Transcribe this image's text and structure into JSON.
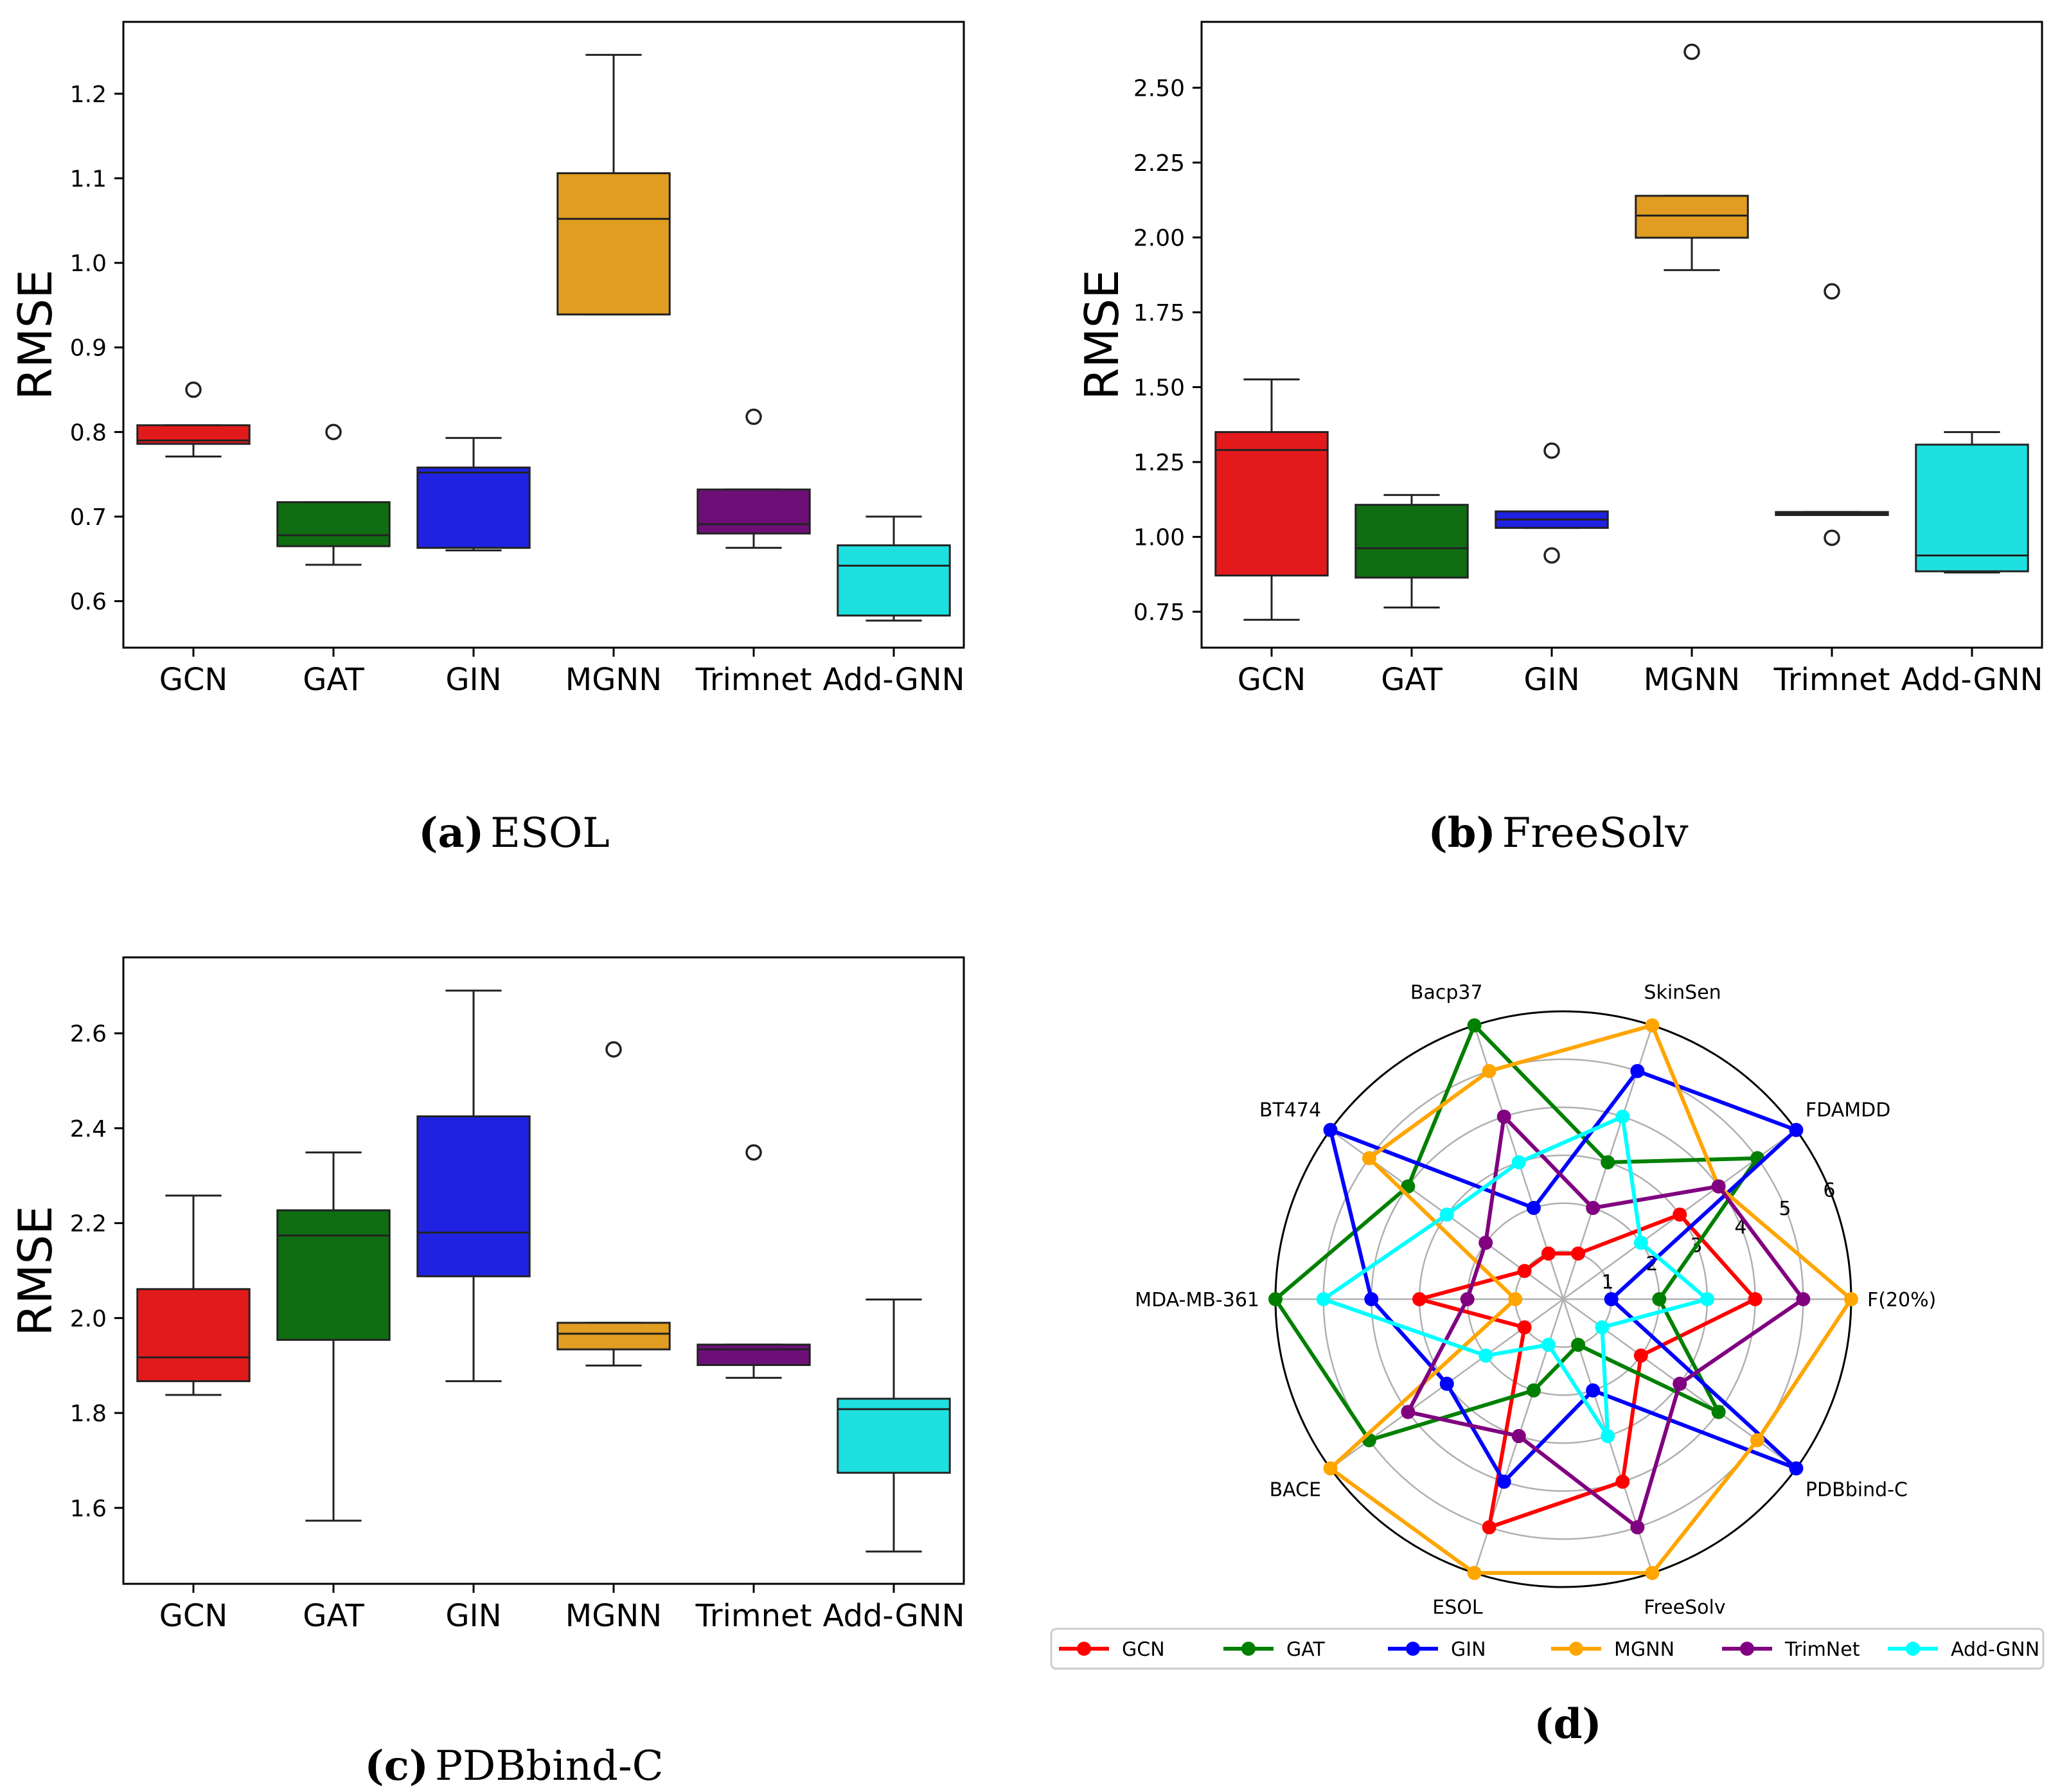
{
  "colors": {
    "GCN": "#e31a1c",
    "GAT": "#0f6e12",
    "GIN": "#1f22e0",
    "MGNN": "#e19d21",
    "Trimnet": "#6e0f78",
    "Add-GNN": "#1fe0e0"
  },
  "radar_colors": [
    "#ff0000",
    "#008000",
    "#0000ff",
    "#ffa500",
    "#800080",
    "#00ffff"
  ],
  "chart_data": [
    {
      "type": "box",
      "caption_letter": "(a)",
      "caption_text": "ESOL",
      "ylabel": "RMSE",
      "ylim": [
        0.545,
        1.285
      ],
      "yticks": [
        "0.6",
        "0.7",
        "0.8",
        "0.9",
        "1.0",
        "1.1",
        "1.2"
      ],
      "categories": [
        "GCN",
        "GAT",
        "GIN",
        "MGNN",
        "Trimnet",
        "Add-GNN"
      ],
      "boxes": [
        {
          "min": 0.771,
          "q1": 0.786,
          "median": 0.79,
          "q3": 0.808,
          "max": 0.808,
          "outliers": [
            0.85
          ]
        },
        {
          "min": 0.643,
          "q1": 0.665,
          "median": 0.678,
          "q3": 0.717,
          "max": 0.717,
          "outliers": [
            0.8
          ]
        },
        {
          "min": 0.66,
          "q1": 0.663,
          "median": 0.752,
          "q3": 0.758,
          "max": 0.793,
          "outliers": []
        },
        {
          "min": 0.939,
          "q1": 0.939,
          "median": 1.052,
          "q3": 1.106,
          "max": 1.246,
          "outliers": []
        },
        {
          "min": 0.663,
          "q1": 0.68,
          "median": 0.691,
          "q3": 0.732,
          "max": 0.732,
          "outliers": [
            0.818
          ]
        },
        {
          "min": 0.577,
          "q1": 0.583,
          "median": 0.642,
          "q3": 0.666,
          "max": 0.7,
          "outliers": []
        }
      ]
    },
    {
      "type": "box",
      "caption_letter": "(b)",
      "caption_text": "FreeSolv",
      "ylabel": "RMSE",
      "ylim": [
        0.63,
        2.72
      ],
      "yticks": [
        "0.75",
        "1.00",
        "1.25",
        "1.50",
        "1.75",
        "2.00",
        "2.25",
        "2.50"
      ],
      "categories": [
        "GCN",
        "GAT",
        "GIN",
        "MGNN",
        "Trimnet",
        "Add-GNN"
      ],
      "boxes": [
        {
          "min": 0.723,
          "q1": 0.871,
          "median": 1.29,
          "q3": 1.35,
          "max": 1.526,
          "outliers": []
        },
        {
          "min": 0.764,
          "q1": 0.864,
          "median": 0.962,
          "q3": 1.107,
          "max": 1.14,
          "outliers": []
        },
        {
          "min": 1.03,
          "q1": 1.03,
          "median": 1.058,
          "q3": 1.085,
          "max": 1.085,
          "outliers": [
            1.288,
            0.938
          ]
        },
        {
          "min": 1.891,
          "q1": 1.999,
          "median": 2.073,
          "q3": 2.139,
          "max": 2.139,
          "outliers": [
            2.62
          ]
        },
        {
          "min": 1.073,
          "q1": 1.073,
          "median": 1.077,
          "q3": 1.083,
          "max": 1.083,
          "outliers": [
            1.82,
            0.997
          ]
        },
        {
          "min": 0.881,
          "q1": 0.885,
          "median": 0.938,
          "q3": 1.308,
          "max": 1.35,
          "outliers": []
        }
      ]
    },
    {
      "type": "box",
      "caption_letter": "(c)",
      "caption_text": "PDBbind-C",
      "ylabel": "RMSE",
      "ylim": [
        1.44,
        2.76
      ],
      "yticks": [
        "1.6",
        "1.8",
        "2.0",
        "2.2",
        "2.4",
        "2.6"
      ],
      "categories": [
        "GCN",
        "GAT",
        "GIN",
        "MGNN",
        "Trimnet",
        "Add-GNN"
      ],
      "boxes": [
        {
          "min": 1.838,
          "q1": 1.867,
          "median": 1.917,
          "q3": 2.061,
          "max": 2.258,
          "outliers": []
        },
        {
          "min": 1.573,
          "q1": 1.954,
          "median": 2.174,
          "q3": 2.227,
          "max": 2.349,
          "outliers": []
        },
        {
          "min": 1.867,
          "q1": 2.088,
          "median": 2.18,
          "q3": 2.425,
          "max": 2.69,
          "outliers": []
        },
        {
          "min": 1.9,
          "q1": 1.934,
          "median": 1.967,
          "q3": 1.99,
          "max": 1.99,
          "outliers": [
            2.566
          ]
        },
        {
          "min": 1.874,
          "q1": 1.901,
          "median": 1.934,
          "q3": 1.944,
          "max": 1.944,
          "outliers": [
            2.349
          ]
        },
        {
          "min": 1.508,
          "q1": 1.674,
          "median": 1.808,
          "q3": 1.83,
          "max": 2.039,
          "outliers": []
        }
      ]
    },
    {
      "type": "radar",
      "caption_letter": "(d)",
      "axes": [
        "F(20%)",
        "FDAMDD",
        "SkinSen",
        "Bacp37",
        "BT474",
        "MDA-MB-361",
        "BACE",
        "ESOL",
        "FreeSolv",
        "PDBbind-C"
      ],
      "rmax": 6,
      "rticks": [
        "1",
        "2",
        "3",
        "4",
        "5",
        "6"
      ],
      "series": [
        {
          "name": "GCN",
          "values": [
            4,
            3,
            1,
            1,
            1,
            3,
            1,
            5,
            4,
            2
          ]
        },
        {
          "name": "GAT",
          "values": [
            2,
            5,
            3,
            6,
            4,
            6,
            5,
            2,
            1,
            4
          ]
        },
        {
          "name": "GIN",
          "values": [
            1,
            6,
            5,
            2,
            6,
            4,
            3,
            4,
            2,
            6
          ]
        },
        {
          "name": "MGNN",
          "values": [
            6,
            4,
            6,
            5,
            5,
            1,
            6,
            6,
            6,
            5
          ]
        },
        {
          "name": "TrimNet",
          "values": [
            5,
            4,
            2,
            4,
            2,
            2,
            4,
            3,
            5,
            3
          ]
        },
        {
          "name": "Add-GNN",
          "values": [
            3,
            2,
            4,
            3,
            3,
            5,
            2,
            1,
            3,
            1
          ]
        }
      ]
    }
  ]
}
